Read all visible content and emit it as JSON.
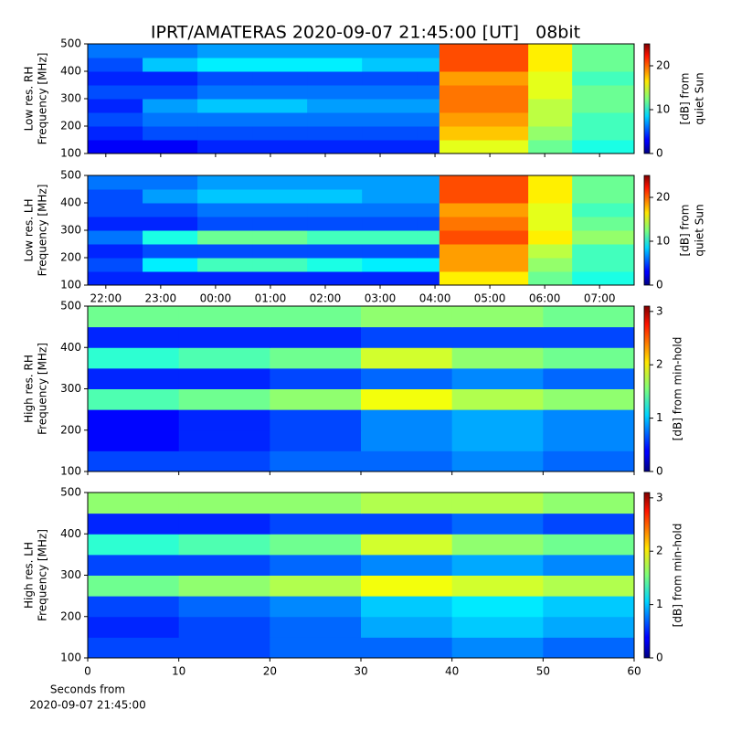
{
  "title": "IPRT/AMATERAS 2020-09-07 21:45:00 [UT]   08bit",
  "chart_data": [
    {
      "type": "heatmap",
      "ylabel_lines": [
        "Low res. RH",
        "Frequency [MHz]"
      ],
      "clabel_lines": [
        "[dB] from",
        "quiet Sun"
      ],
      "xlim": [
        21.67,
        31.63
      ],
      "xticks": [
        22,
        23,
        24,
        25,
        26,
        27,
        28,
        29,
        30,
        31
      ],
      "xticklabels_visible": false,
      "ylim": [
        100,
        500
      ],
      "yticks": [
        100,
        200,
        300,
        400,
        500
      ],
      "clim": [
        0,
        25
      ],
      "cticks": [
        0,
        10,
        20
      ],
      "colormap": "jet",
      "xbins": [
        21.67,
        22.67,
        23.67,
        24.67,
        25.67,
        26.67,
        27.67,
        28.08,
        29.7,
        30.5,
        31.63
      ],
      "ybins": [
        100,
        150,
        200,
        250,
        300,
        350,
        400,
        450,
        500
      ],
      "z": [
        [
          3,
          3,
          4,
          4,
          4,
          4,
          4,
          15,
          12,
          10
        ],
        [
          4,
          5,
          5,
          5,
          5,
          5,
          5,
          17,
          13,
          11
        ],
        [
          5,
          6,
          6,
          6,
          6,
          6,
          6,
          18,
          14,
          11
        ],
        [
          4,
          7,
          8,
          8,
          7,
          7,
          7,
          19,
          14,
          12
        ],
        [
          5,
          5,
          6,
          6,
          6,
          6,
          6,
          19,
          15,
          12
        ],
        [
          4,
          4,
          5,
          5,
          5,
          5,
          5,
          18,
          15,
          11
        ],
        [
          5,
          8,
          9,
          9,
          9,
          8,
          8,
          20,
          16,
          12
        ],
        [
          6,
          6,
          7,
          7,
          7,
          7,
          7,
          20,
          16,
          12
        ]
      ]
    },
    {
      "type": "heatmap",
      "ylabel_lines": [
        "Low res. LH",
        "Frequency [MHz]"
      ],
      "clabel_lines": [
        "[dB] from",
        "quiet Sun"
      ],
      "xlim": [
        21.67,
        31.63
      ],
      "xticks": [
        {
          "value": 22,
          "label": "22:00"
        },
        {
          "value": 23,
          "label": "23:00"
        },
        {
          "value": 24,
          "label": "00:00"
        },
        {
          "value": 25,
          "label": "01:00"
        },
        {
          "value": 26,
          "label": "02:00"
        },
        {
          "value": 27,
          "label": "03:00"
        },
        {
          "value": 28,
          "label": "04:00"
        },
        {
          "value": 29,
          "label": "05:00"
        },
        {
          "value": 30,
          "label": "06:00"
        },
        {
          "value": 31,
          "label": "07:00"
        }
      ],
      "xticklabels_visible": true,
      "ylim": [
        100,
        500
      ],
      "yticks": [
        100,
        200,
        300,
        400,
        500
      ],
      "clim": [
        0,
        25
      ],
      "cticks": [
        0,
        10,
        20
      ],
      "colormap": "jet",
      "xbins": [
        21.67,
        22.67,
        23.67,
        24.67,
        25.67,
        26.67,
        27.67,
        28.08,
        29.7,
        30.5,
        31.63
      ],
      "ybins": [
        100,
        150,
        200,
        250,
        300,
        350,
        400,
        450,
        500
      ],
      "z": [
        [
          4,
          4,
          4,
          4,
          4,
          4,
          4,
          16,
          12,
          10
        ],
        [
          5,
          9,
          11,
          11,
          10,
          9,
          9,
          18,
          13,
          11
        ],
        [
          4,
          5,
          5,
          5,
          5,
          5,
          5,
          18,
          14,
          11
        ],
        [
          6,
          10,
          12,
          12,
          11,
          11,
          11,
          20,
          16,
          13
        ],
        [
          4,
          4,
          5,
          5,
          5,
          5,
          5,
          19,
          15,
          12
        ],
        [
          5,
          5,
          6,
          6,
          6,
          6,
          6,
          18,
          15,
          11
        ],
        [
          5,
          7,
          8,
          8,
          8,
          7,
          7,
          20,
          16,
          12
        ],
        [
          6,
          6,
          7,
          7,
          7,
          7,
          7,
          20,
          16,
          12
        ]
      ]
    },
    {
      "type": "heatmap",
      "ylabel_lines": [
        "High res. RH",
        "Frequency [MHz]"
      ],
      "clabel_lines": [
        "[dB] from min-hold"
      ],
      "xlim": [
        0,
        60
      ],
      "xticks": [
        0,
        10,
        20,
        30,
        40,
        50,
        60
      ],
      "xticklabels_visible": false,
      "ylim": [
        100,
        500
      ],
      "yticks": [
        100,
        200,
        300,
        400,
        500
      ],
      "clim": [
        0,
        3.1
      ],
      "cticks": [
        0,
        1,
        2,
        3
      ],
      "colormap": "jet",
      "xbins": [
        0,
        10,
        20,
        30,
        40,
        50,
        60
      ],
      "ybins": [
        100,
        150,
        200,
        250,
        300,
        350,
        400,
        450,
        500
      ],
      "z": [
        [
          0.6,
          0.6,
          0.7,
          0.7,
          0.8,
          0.7
        ],
        [
          0.4,
          0.5,
          0.6,
          0.8,
          0.9,
          0.8
        ],
        [
          0.4,
          0.5,
          0.6,
          0.8,
          0.9,
          0.8
        ],
        [
          1.4,
          1.5,
          1.6,
          1.9,
          1.7,
          1.6
        ],
        [
          0.5,
          0.5,
          0.6,
          0.7,
          0.8,
          0.7
        ],
        [
          1.3,
          1.4,
          1.5,
          1.8,
          1.6,
          1.5
        ],
        [
          0.5,
          0.5,
          0.5,
          0.6,
          0.6,
          0.6
        ],
        [
          1.5,
          1.5,
          1.5,
          1.6,
          1.6,
          1.5
        ]
      ]
    },
    {
      "type": "heatmap",
      "ylabel_lines": [
        "High res. LH",
        "Frequency [MHz]"
      ],
      "clabel_lines": [
        "[dB] from min-hold"
      ],
      "xlim": [
        0,
        60
      ],
      "xticks": [
        0,
        10,
        20,
        30,
        40,
        50,
        60
      ],
      "xticklabels_visible": true,
      "xlabel_lines": [
        "Seconds from",
        "2020-09-07 21:45:00"
      ],
      "ylim": [
        100,
        500
      ],
      "yticks": [
        100,
        200,
        300,
        400,
        500
      ],
      "clim": [
        0,
        3.1
      ],
      "cticks": [
        0,
        1,
        2,
        3
      ],
      "colormap": "jet",
      "xbins": [
        0,
        10,
        20,
        30,
        40,
        50,
        60
      ],
      "ybins": [
        100,
        150,
        200,
        250,
        300,
        350,
        400,
        450,
        500
      ],
      "z": [
        [
          0.6,
          0.6,
          0.7,
          0.7,
          0.8,
          0.7
        ],
        [
          0.5,
          0.6,
          0.7,
          0.9,
          1.0,
          0.9
        ],
        [
          0.6,
          0.7,
          0.8,
          1.0,
          1.1,
          1.0
        ],
        [
          1.5,
          1.6,
          1.7,
          1.9,
          1.8,
          1.7
        ],
        [
          0.6,
          0.6,
          0.7,
          0.8,
          0.9,
          0.8
        ],
        [
          1.3,
          1.4,
          1.5,
          1.8,
          1.6,
          1.5
        ],
        [
          0.5,
          0.5,
          0.6,
          0.6,
          0.7,
          0.6
        ],
        [
          1.6,
          1.6,
          1.6,
          1.7,
          1.7,
          1.6
        ]
      ]
    }
  ]
}
